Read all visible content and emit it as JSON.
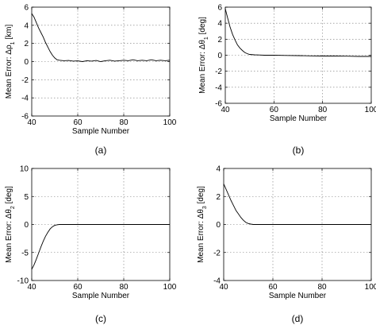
{
  "chart_data": [
    {
      "type": "line",
      "caption": "(a)",
      "xlabel": "Sample Number",
      "ylabel": "Mean Error: Δρ",
      "ylabel_sub": "1",
      "ylabel_unit": " [km]",
      "xlim": [
        40,
        100
      ],
      "ylim": [
        -6,
        6
      ],
      "xticks": [
        40,
        60,
        80,
        100
      ],
      "yticks": [
        -6,
        -4,
        -2,
        0,
        2,
        4,
        6
      ],
      "grid": true,
      "series": [
        {
          "x": [
            40,
            41,
            42,
            43,
            44,
            45,
            46,
            47,
            48,
            49,
            50,
            51,
            52,
            54,
            56,
            58,
            60,
            62,
            64,
            66,
            68,
            70,
            72,
            74,
            76,
            78,
            80,
            82,
            84,
            86,
            88,
            90,
            92,
            94,
            96,
            98,
            100
          ],
          "y": [
            5.3,
            4.9,
            4.3,
            3.7,
            3.2,
            2.7,
            2.1,
            1.6,
            1.1,
            0.7,
            0.4,
            0.2,
            0.15,
            0.1,
            0.12,
            0.05,
            0.08,
            0.0,
            0.1,
            0.05,
            0.12,
            0.0,
            0.1,
            0.15,
            0.05,
            0.1,
            0.15,
            0.1,
            0.2,
            0.1,
            0.15,
            0.1,
            0.2,
            0.1,
            0.15,
            0.1,
            0.15
          ]
        }
      ]
    },
    {
      "type": "line",
      "caption": "(b)",
      "xlabel": "Sample Number",
      "ylabel": "Mean Error: Δθ",
      "ylabel_sub": "1",
      "ylabel_unit": " [deg]",
      "xlim": [
        40,
        100
      ],
      "ylim": [
        -6,
        6
      ],
      "xticks": [
        40,
        60,
        80,
        100
      ],
      "yticks": [
        -6,
        -4,
        -2,
        0,
        2,
        4,
        6
      ],
      "grid": true,
      "series": [
        {
          "x": [
            40,
            41,
            42,
            43,
            44,
            45,
            46,
            47,
            48,
            49,
            50,
            52,
            54,
            56,
            60,
            65,
            70,
            75,
            80,
            85,
            90,
            95,
            100
          ],
          "y": [
            5.8,
            4.6,
            3.5,
            2.6,
            1.9,
            1.3,
            0.9,
            0.6,
            0.35,
            0.2,
            0.1,
            0.05,
            0.03,
            0.0,
            0.0,
            -0.03,
            -0.05,
            -0.08,
            -0.1,
            -0.1,
            -0.12,
            -0.15,
            -0.15
          ]
        }
      ]
    },
    {
      "type": "line",
      "caption": "(c)",
      "xlabel": "Sample Number",
      "ylabel": "Mean Error: Δθ",
      "ylabel_sub": "2",
      "ylabel_unit": " [deg]",
      "xlim": [
        40,
        100
      ],
      "ylim": [
        -10,
        10
      ],
      "xticks": [
        40,
        60,
        80,
        100
      ],
      "yticks": [
        -10,
        -5,
        0,
        5,
        10
      ],
      "grid": true,
      "series": [
        {
          "x": [
            40,
            41,
            42,
            43,
            44,
            45,
            46,
            47,
            48,
            49,
            50,
            51,
            52,
            54,
            56,
            60,
            70,
            80,
            90,
            100
          ],
          "y": [
            -8,
            -7.2,
            -6.2,
            -5.1,
            -4.0,
            -3.0,
            -2.1,
            -1.4,
            -0.8,
            -0.4,
            -0.15,
            -0.05,
            0.0,
            0.0,
            0.0,
            0.0,
            0.0,
            0.0,
            0.0,
            0.0
          ]
        }
      ]
    },
    {
      "type": "line",
      "caption": "(d)",
      "xlabel": "Sample Number",
      "ylabel": "Mean Error: Δθ",
      "ylabel_sub": "3",
      "ylabel_unit": " [deg]",
      "xlim": [
        40,
        100
      ],
      "ylim": [
        -4,
        4
      ],
      "xticks": [
        40,
        60,
        80,
        100
      ],
      "yticks": [
        -4,
        -2,
        0,
        2,
        4
      ],
      "grid": true,
      "series": [
        {
          "x": [
            40,
            41,
            42,
            43,
            44,
            45,
            46,
            47,
            48,
            49,
            50,
            51,
            52,
            54,
            56,
            60,
            70,
            80,
            90,
            100
          ],
          "y": [
            2.9,
            2.5,
            2.1,
            1.7,
            1.35,
            1.0,
            0.75,
            0.5,
            0.3,
            0.15,
            0.07,
            0.03,
            0.0,
            0.0,
            0.0,
            0.0,
            0.0,
            0.0,
            0.0,
            0.0
          ]
        }
      ]
    }
  ]
}
